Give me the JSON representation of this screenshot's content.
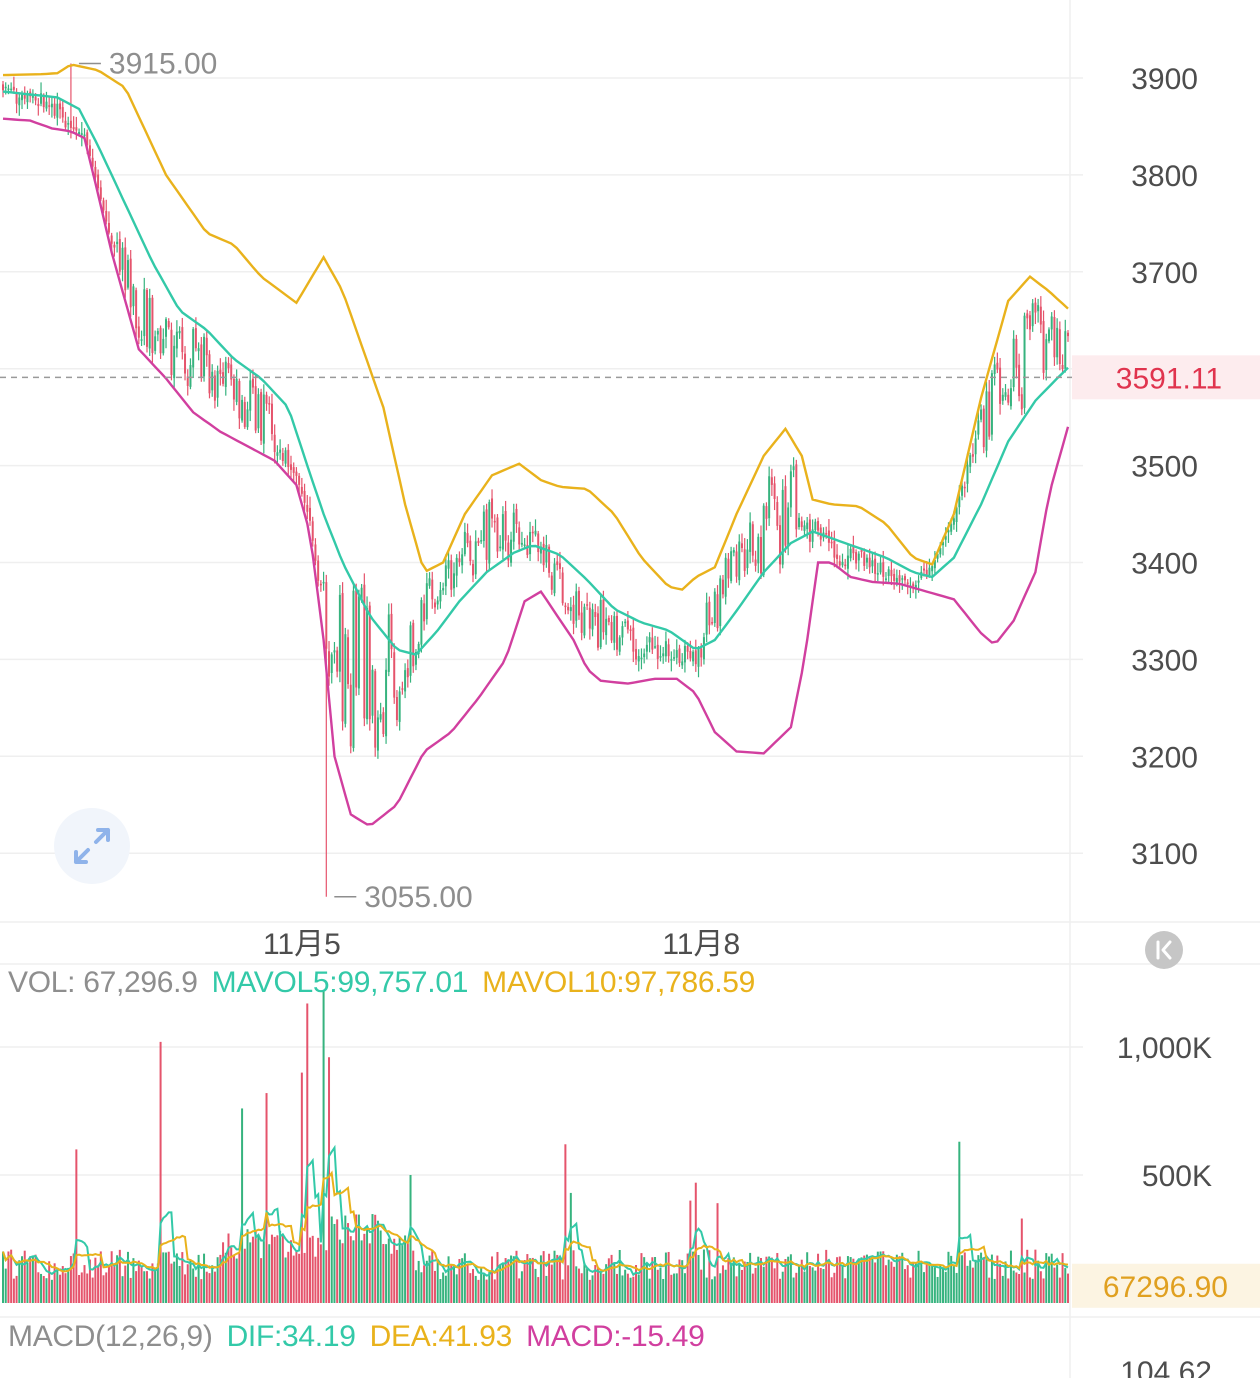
{
  "chart_data": {
    "type": "candlestick",
    "price": {
      "y_ticks": [
        "3900",
        "3800",
        "3700",
        "3500",
        "3400",
        "3300",
        "3200",
        "3100"
      ],
      "y_tick_values": [
        3900,
        3800,
        3700,
        3500,
        3400,
        3300,
        3200,
        3100
      ],
      "ylim": [
        3030,
        3915
      ],
      "current_price": "3591.11",
      "current_price_value": 3591.11,
      "high_label": "3915.00",
      "high_value": 3915,
      "low_label": "3055.00",
      "low_value": 3055,
      "x_ticks": [
        "11月5",
        "11月8"
      ],
      "bb_upper_anchors": [
        [
          0,
          3903
        ],
        [
          15,
          3904
        ],
        [
          20,
          3905
        ],
        [
          25,
          3914
        ],
        [
          35,
          3908
        ],
        [
          45,
          3890
        ],
        [
          60,
          3800
        ],
        [
          75,
          3740
        ],
        [
          85,
          3728
        ],
        [
          95,
          3695
        ],
        [
          108,
          3668
        ],
        [
          118,
          3715
        ],
        [
          125,
          3680
        ],
        [
          130,
          3640
        ],
        [
          140,
          3560
        ],
        [
          148,
          3460
        ],
        [
          155,
          3390
        ],
        [
          162,
          3400
        ],
        [
          170,
          3450
        ],
        [
          180,
          3490
        ],
        [
          190,
          3502
        ],
        [
          198,
          3485
        ],
        [
          205,
          3478
        ],
        [
          215,
          3476
        ],
        [
          225,
          3450
        ],
        [
          235,
          3405
        ],
        [
          245,
          3375
        ],
        [
          250,
          3372
        ],
        [
          255,
          3385
        ],
        [
          262,
          3395
        ],
        [
          270,
          3450
        ],
        [
          280,
          3510
        ],
        [
          288,
          3538
        ],
        [
          294,
          3510
        ],
        [
          298,
          3465
        ],
        [
          305,
          3460
        ],
        [
          315,
          3458
        ],
        [
          325,
          3440
        ],
        [
          335,
          3405
        ],
        [
          342,
          3398
        ],
        [
          350,
          3450
        ],
        [
          360,
          3570
        ],
        [
          370,
          3670
        ],
        [
          378,
          3695
        ],
        [
          385,
          3680
        ],
        [
          392,
          3662
        ]
      ],
      "bb_lower_anchors": [
        [
          0,
          3858
        ],
        [
          10,
          3856
        ],
        [
          18,
          3848
        ],
        [
          25,
          3845
        ],
        [
          30,
          3838
        ],
        [
          35,
          3780
        ],
        [
          40,
          3720
        ],
        [
          50,
          3620
        ],
        [
          60,
          3590
        ],
        [
          70,
          3555
        ],
        [
          80,
          3535
        ],
        [
          90,
          3520
        ],
        [
          100,
          3505
        ],
        [
          108,
          3480
        ],
        [
          113,
          3430
        ],
        [
          118,
          3320
        ],
        [
          122,
          3200
        ],
        [
          128,
          3140
        ],
        [
          135,
          3128
        ],
        [
          145,
          3150
        ],
        [
          155,
          3205
        ],
        [
          165,
          3225
        ],
        [
          175,
          3260
        ],
        [
          185,
          3300
        ],
        [
          192,
          3360
        ],
        [
          198,
          3370
        ],
        [
          204,
          3345
        ],
        [
          210,
          3320
        ],
        [
          215,
          3290
        ],
        [
          220,
          3278
        ],
        [
          230,
          3275
        ],
        [
          240,
          3280
        ],
        [
          248,
          3280
        ],
        [
          255,
          3265
        ],
        [
          262,
          3225
        ],
        [
          270,
          3205
        ],
        [
          280,
          3203
        ],
        [
          290,
          3230
        ],
        [
          295,
          3300
        ],
        [
          300,
          3400
        ],
        [
          305,
          3400
        ],
        [
          312,
          3385
        ],
        [
          320,
          3380
        ],
        [
          330,
          3378
        ],
        [
          340,
          3370
        ],
        [
          350,
          3362
        ],
        [
          360,
          3327
        ],
        [
          365,
          3315
        ],
        [
          372,
          3340
        ],
        [
          380,
          3390
        ],
        [
          385,
          3470
        ],
        [
          392,
          3540
        ]
      ],
      "ma_mid_anchors": [
        [
          0,
          3886
        ],
        [
          10,
          3883
        ],
        [
          20,
          3880
        ],
        [
          28,
          3868
        ],
        [
          35,
          3830
        ],
        [
          45,
          3770
        ],
        [
          55,
          3710
        ],
        [
          65,
          3660
        ],
        [
          75,
          3640
        ],
        [
          85,
          3610
        ],
        [
          95,
          3590
        ],
        [
          105,
          3560
        ],
        [
          112,
          3500
        ],
        [
          118,
          3450
        ],
        [
          125,
          3400
        ],
        [
          135,
          3345
        ],
        [
          145,
          3310
        ],
        [
          152,
          3305
        ],
        [
          160,
          3330
        ],
        [
          168,
          3360
        ],
        [
          178,
          3390
        ],
        [
          188,
          3410
        ],
        [
          195,
          3418
        ],
        [
          205,
          3408
        ],
        [
          215,
          3382
        ],
        [
          225,
          3352
        ],
        [
          235,
          3338
        ],
        [
          245,
          3330
        ],
        [
          255,
          3310
        ],
        [
          262,
          3320
        ],
        [
          270,
          3350
        ],
        [
          280,
          3390
        ],
        [
          290,
          3420
        ],
        [
          298,
          3432
        ],
        [
          305,
          3425
        ],
        [
          315,
          3415
        ],
        [
          325,
          3405
        ],
        [
          335,
          3390
        ],
        [
          342,
          3385
        ],
        [
          350,
          3405
        ],
        [
          360,
          3460
        ],
        [
          370,
          3525
        ],
        [
          380,
          3567
        ],
        [
          388,
          3590
        ],
        [
          392,
          3601
        ]
      ],
      "candle_seed": 20241108
    },
    "volume": {
      "label": "VOL: 67,296.9",
      "mavol5_label": "MAVOL5:99,757.01",
      "mavol10_label": "MAVOL10:97,786.59",
      "y_ticks": [
        "1,000K",
        "500K"
      ],
      "y_tick_values": [
        1000000,
        500000
      ],
      "current_label": "67296.90",
      "current_value": 67296.9
    },
    "macd": {
      "label": "MACD(12,26,9)",
      "dif_label": "DIF:34.19",
      "dea_label": "DEA:41.93",
      "macd_label": "MACD:-15.49",
      "y_tick": "104.62"
    },
    "colors": {
      "up": "#36b37e",
      "down": "#e5546c",
      "mid": "#33c9a8",
      "upper": "#e9b21c",
      "lower": "#d13f9f",
      "grid": "#efefef",
      "axis_text": "#4d4d4d",
      "muted_text": "#8e8e8e",
      "price_tag_text": "#e0344e",
      "price_tag_bg": "#fdecee",
      "vol_current_text": "#e0a020",
      "vol_current_bg": "#fcf4e2"
    }
  },
  "controls": {
    "expand_icon": "expand-arrows-icon",
    "collapse_icon": "collapse-left-icon"
  }
}
